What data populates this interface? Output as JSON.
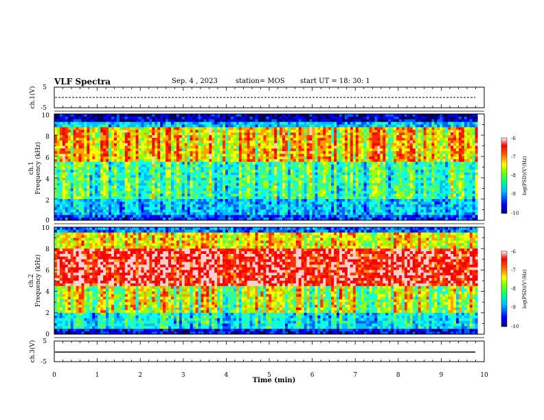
{
  "header": {
    "title": "VLF Spectra",
    "date": "Sep. 4 , 2023",
    "station": "station= MOS",
    "start_ut": "start  UT =   18: 30: 1"
  },
  "chart_data": [
    {
      "type": "line",
      "name": "ch1-voltage",
      "ylabel": "ch.1(V)",
      "ylim": [
        -5,
        5
      ],
      "yticks": [
        "5",
        "-5"
      ],
      "xlim": [
        0,
        10
      ],
      "description_level": 0,
      "note": "flat trace near 0 V, slightly dotted"
    },
    {
      "type": "heatmap",
      "name": "ch1-spectrogram",
      "ylabel": "Frequency (kHz)",
      "ylabel_prefix": "ch.1",
      "ylim": [
        0,
        10
      ],
      "yticks": [
        "0",
        "2",
        "4",
        "6",
        "8",
        "10"
      ],
      "xlim": [
        0,
        9.85
      ],
      "colorbar": {
        "label": "log(PSD)(V²/Hz)",
        "range": [
          -10,
          -6
        ],
        "ticks": [
          "-6",
          "-7",
          "-8",
          "-9",
          "-10"
        ]
      },
      "dominant_band_khz": [
        5.5,
        8.8
      ],
      "low_band_khz": [
        0,
        2
      ]
    },
    {
      "type": "heatmap",
      "name": "ch2-spectrogram",
      "ylabel": "Frequency (kHz)",
      "ylabel_prefix": "ch.2",
      "ylim": [
        0,
        10
      ],
      "yticks": [
        "0",
        "2",
        "4",
        "6",
        "8",
        "10"
      ],
      "xlim": [
        0,
        9.85
      ],
      "colorbar": {
        "label": "log(PSD)(V²/Hz)",
        "range": [
          -10,
          -6
        ],
        "ticks": [
          "-6",
          "-7",
          "-8",
          "-9",
          "-10"
        ]
      },
      "dominant_band_khz": [
        4.5,
        8.0
      ],
      "low_band_khz": [
        0,
        2
      ]
    },
    {
      "type": "line",
      "name": "ch3-voltage",
      "ylabel": "ch.3(V)",
      "ylim": [
        -5,
        5
      ],
      "yticks": [
        "5",
        "-5"
      ],
      "xlim": [
        0,
        10
      ],
      "level": -1.5,
      "xlabel": "Time  (min)",
      "xticks": [
        "0",
        "1",
        "2",
        "3",
        "4",
        "5",
        "6",
        "7",
        "8",
        "9",
        "10"
      ]
    }
  ],
  "colors": {
    "jet": [
      "#000080",
      "#0000ff",
      "#00a0ff",
      "#00ffff",
      "#40ff80",
      "#ffff00",
      "#ff8000",
      "#ff0000",
      "#ffc0c0",
      "#ffffff"
    ]
  }
}
